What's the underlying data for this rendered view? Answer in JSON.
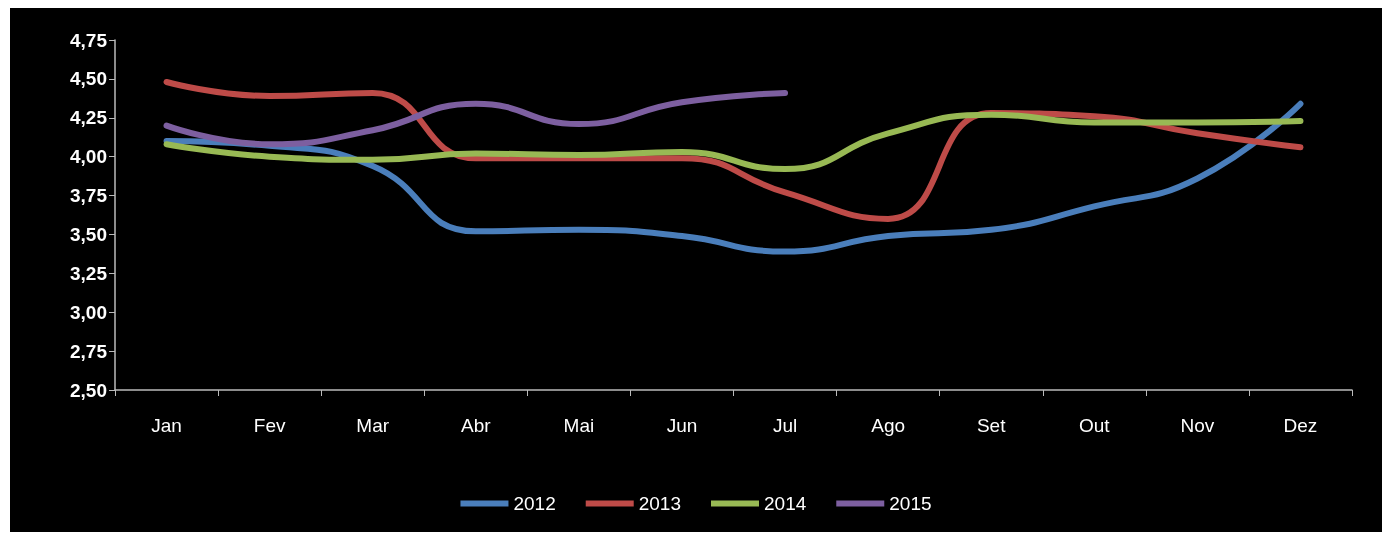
{
  "chart_data": {
    "type": "line",
    "categories": [
      "Jan",
      "Fev",
      "Mar",
      "Abr",
      "Mai",
      "Jun",
      "Jul",
      "Ago",
      "Set",
      "Out",
      "Nov",
      "Dez"
    ],
    "series": [
      {
        "name": "2012",
        "color": "#4a7ebb",
        "values": [
          4.1,
          4.07,
          3.94,
          3.52,
          3.53,
          3.49,
          3.39,
          3.49,
          3.53,
          3.68,
          3.86,
          4.34
        ]
      },
      {
        "name": "2013",
        "color": "#be4b48",
        "values": [
          4.48,
          4.39,
          4.41,
          3.99,
          3.99,
          3.99,
          3.77,
          3.6,
          4.28,
          4.26,
          4.15,
          4.06
        ]
      },
      {
        "name": "2014",
        "color": "#98b954",
        "values": [
          4.08,
          4.0,
          3.98,
          4.02,
          4.01,
          4.03,
          3.92,
          4.15,
          4.27,
          4.22,
          4.22,
          4.23
        ]
      },
      {
        "name": "2015",
        "color": "#7d5fa0",
        "values": [
          4.2,
          4.08,
          4.17,
          4.34,
          4.21,
          4.35,
          4.41,
          null,
          null,
          null,
          null,
          null
        ]
      }
    ],
    "ylim": [
      2.5,
      4.75
    ],
    "yticks": [
      {
        "value": 2.5,
        "label": "2,50"
      },
      {
        "value": 2.75,
        "label": "2,75"
      },
      {
        "value": 3,
        "label": "3,00"
      },
      {
        "value": 3.25,
        "label": "3,25"
      },
      {
        "value": 3.5,
        "label": "3,50"
      },
      {
        "value": 3.75,
        "label": "3,75"
      },
      {
        "value": 4,
        "label": "4,00"
      },
      {
        "value": 4.25,
        "label": "4,25"
      },
      {
        "value": 4.5,
        "label": "4,50"
      },
      {
        "value": 4.75,
        "label": "4,75"
      }
    ],
    "grid": false,
    "legend": "bottom",
    "marker": "none",
    "line_style": "solid"
  }
}
